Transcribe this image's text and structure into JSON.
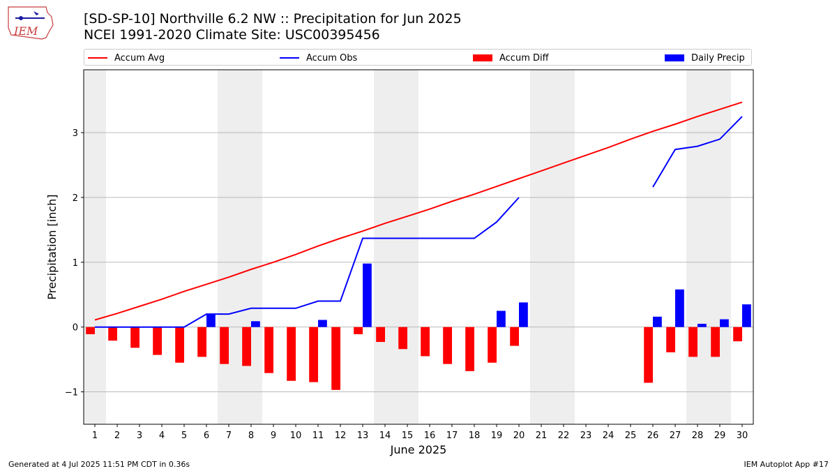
{
  "logo": {
    "text": "IEM"
  },
  "title_line1": "[SD-SP-10] Northville 6.2 NW :: Precipitation for Jun 2025",
  "title_line2": "NCEI 1991-2020 Climate Site: USC00395456",
  "footer_left": "Generated at 4 Jul 2025 11:51 PM CDT in 0.36s",
  "footer_right": "IEM Autoplot App #17",
  "colors": {
    "avg": "#ff0000",
    "obs": "#0000ff",
    "diff": "#ff0000",
    "daily": "#0000ff",
    "weekend": "#eeeeee",
    "grid": "#b0b0b0"
  },
  "legend": [
    {
      "label": "Accum Avg",
      "kind": "line",
      "color": "#ff0000"
    },
    {
      "label": "Accum Obs",
      "kind": "line",
      "color": "#0000ff"
    },
    {
      "label": "Accum Diff",
      "kind": "box",
      "color": "#ff0000"
    },
    {
      "label": "Daily Precip",
      "kind": "box",
      "color": "#0000ff"
    }
  ],
  "chart_data": {
    "type": "bar",
    "xlabel": "June 2025",
    "ylabel": "Precipitation [inch]",
    "ylim": [
      -1.5,
      3.97
    ],
    "yticks": [
      -1,
      0,
      1,
      2,
      3
    ],
    "ytick_labels": [
      "−1",
      "0",
      "1",
      "2",
      "3"
    ],
    "grid": "horizontal",
    "legend_position": "top",
    "x": [
      1,
      2,
      3,
      4,
      5,
      6,
      7,
      8,
      9,
      10,
      11,
      12,
      13,
      14,
      15,
      16,
      17,
      18,
      19,
      20,
      21,
      22,
      23,
      24,
      25,
      26,
      27,
      28,
      29,
      30
    ],
    "shaded_days": [
      1,
      7,
      8,
      14,
      15,
      21,
      22,
      28,
      29
    ],
    "series": [
      {
        "name": "Accum Avg",
        "kind": "line",
        "values": [
          0.11,
          0.21,
          0.32,
          0.43,
          0.55,
          0.66,
          0.77,
          0.89,
          1.0,
          1.12,
          1.25,
          1.37,
          1.48,
          1.6,
          1.71,
          1.82,
          1.94,
          2.05,
          2.17,
          2.29,
          2.41,
          2.53,
          2.65,
          2.77,
          2.9,
          3.02,
          3.13,
          3.25,
          3.36,
          3.47
        ]
      },
      {
        "name": "Accum Obs",
        "kind": "line",
        "values": [
          0,
          0,
          0,
          0,
          0,
          0.2,
          0.2,
          0.29,
          0.29,
          0.29,
          0.4,
          0.4,
          1.37,
          1.37,
          1.37,
          1.37,
          1.37,
          1.37,
          1.62,
          2.0,
          null,
          null,
          null,
          null,
          null,
          2.16,
          2.74,
          2.79,
          2.9,
          3.25
        ]
      },
      {
        "name": "Accum Diff",
        "kind": "bar",
        "values": [
          -0.11,
          -0.21,
          -0.32,
          -0.43,
          -0.55,
          -0.46,
          -0.57,
          -0.6,
          -0.71,
          -0.83,
          -0.85,
          -0.97,
          -0.11,
          -0.23,
          -0.34,
          -0.45,
          -0.57,
          -0.68,
          -0.55,
          -0.29,
          null,
          null,
          null,
          null,
          null,
          -0.86,
          -0.39,
          -0.46,
          -0.46,
          -0.22
        ]
      },
      {
        "name": "Daily Precip",
        "kind": "bar",
        "values": [
          0,
          0,
          0,
          0,
          0,
          0.2,
          0,
          0.09,
          0,
          0,
          0.11,
          0,
          0.98,
          0,
          0,
          0,
          0,
          0,
          0.25,
          0.38,
          null,
          null,
          null,
          null,
          null,
          0.16,
          0.58,
          0.05,
          0.12,
          0.35
        ]
      }
    ]
  }
}
